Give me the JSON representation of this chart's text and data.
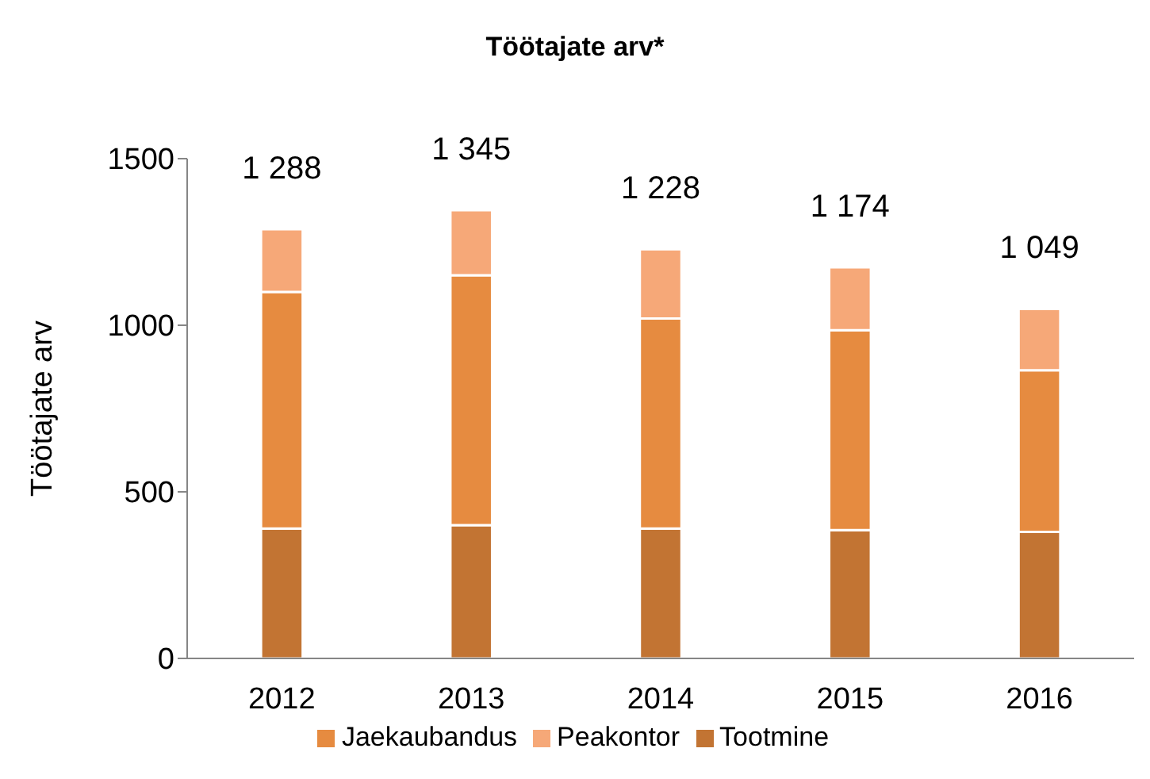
{
  "chart_data": {
    "type": "bar",
    "title": "Töötajate arv*",
    "ylabel": "Töötajate arv",
    "categories": [
      "2012",
      "2013",
      "2014",
      "2015",
      "2016"
    ],
    "series": [
      {
        "name": "Tootmine",
        "color": "#c27433",
        "values": [
          390,
          400,
          390,
          385,
          380
        ]
      },
      {
        "name": "Jaekaubandus",
        "color": "#e68b40",
        "values": [
          710,
          750,
          630,
          600,
          485
        ]
      },
      {
        "name": "Peakontor",
        "color": "#f6a878",
        "values": [
          188,
          195,
          208,
          189,
          184
        ]
      }
    ],
    "stacked": true,
    "totals": [
      "1 288",
      "1 345",
      "1 228",
      "1 174",
      "1 049"
    ],
    "ylim": [
      0,
      1500
    ],
    "yticks": [
      0,
      500,
      1000,
      1500
    ],
    "grid": false,
    "legend": "bottom"
  }
}
